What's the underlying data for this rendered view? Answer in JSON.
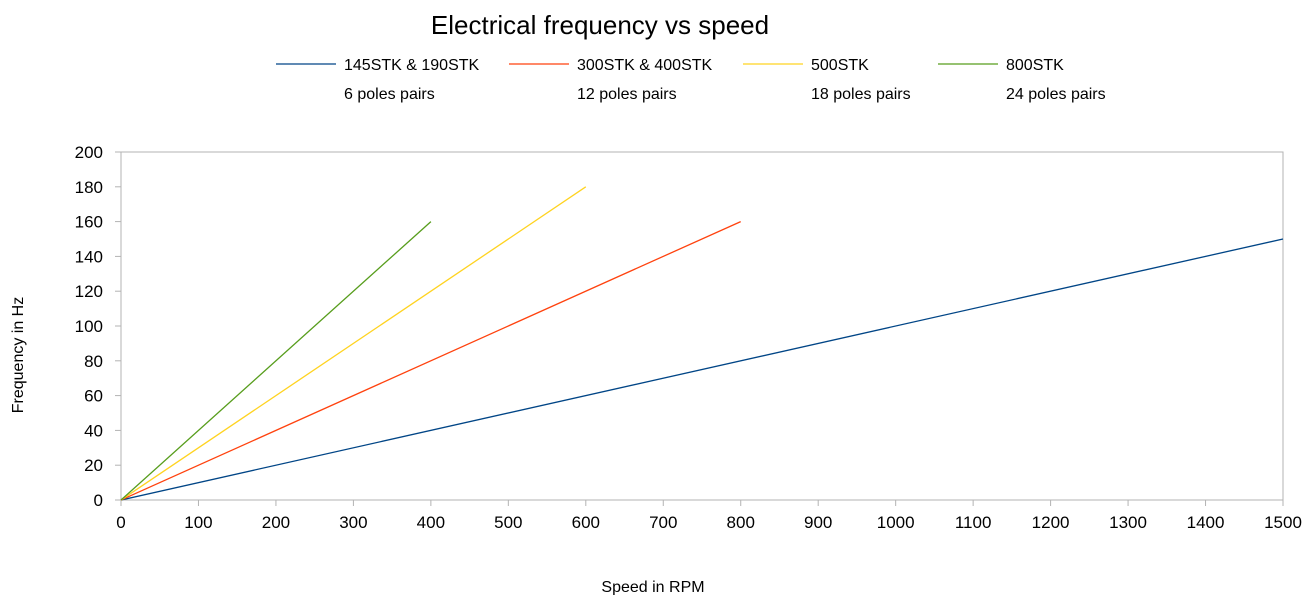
{
  "chart_data": {
    "type": "line",
    "title": "Electrical frequency vs speed",
    "xlabel": "Speed in RPM",
    "ylabel": "Frequency in Hz",
    "xlim": [
      0,
      1500
    ],
    "ylim": [
      0,
      200
    ],
    "xticks": [
      0,
      100,
      200,
      300,
      400,
      500,
      600,
      700,
      800,
      900,
      1000,
      1100,
      1200,
      1300,
      1400,
      1500
    ],
    "yticks": [
      0,
      20,
      40,
      60,
      80,
      100,
      120,
      140,
      160,
      180,
      200
    ],
    "grid": false,
    "legend_position": "top",
    "series": [
      {
        "name": "145STK & 190STK",
        "subtitle": "6 poles pairs",
        "color": "#004586",
        "x": [
          0,
          1500
        ],
        "y": [
          0,
          150
        ]
      },
      {
        "name": "300STK & 400STK",
        "subtitle": "12 poles pairs",
        "color": "#ff420e",
        "x": [
          0,
          800
        ],
        "y": [
          0,
          160
        ]
      },
      {
        "name": "500STK",
        "subtitle": "18 poles pairs",
        "color": "#ffd320",
        "x": [
          0,
          600
        ],
        "y": [
          0,
          180
        ]
      },
      {
        "name": "800STK",
        "subtitle": "24 poles pairs",
        "color": "#579d1c",
        "x": [
          0,
          400
        ],
        "y": [
          0,
          160
        ]
      }
    ]
  }
}
